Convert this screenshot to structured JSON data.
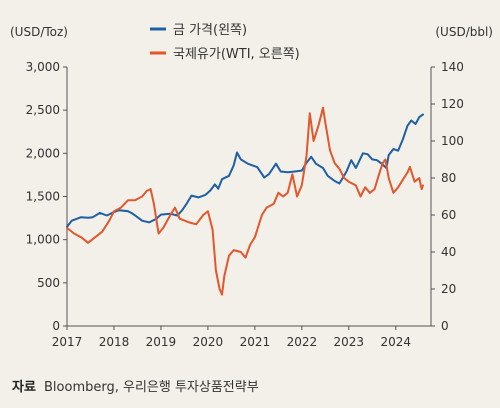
{
  "chart_data": {
    "type": "line",
    "left_axis_unit": "(USD/Toz)",
    "right_axis_unit": "(USD/bbl)",
    "left_ylim": [
      0,
      3000
    ],
    "right_ylim": [
      0,
      140
    ],
    "left_ticks": [
      "3,000",
      "2,500",
      "2,000",
      "1,500",
      "1,000",
      "500",
      "0"
    ],
    "right_ticks": [
      "140",
      "120",
      "100",
      "80",
      "60",
      "40",
      "20",
      "0"
    ],
    "x_ticks": [
      "2017",
      "2018",
      "2019",
      "2020",
      "2021",
      "2022",
      "2023",
      "2024"
    ],
    "xlim": [
      2017.0,
      2024.75
    ],
    "grid": false,
    "legend_position": "top-center",
    "series": [
      {
        "name": "금 가격(왼쪽)",
        "axis": "left",
        "color": "#1f5fa3",
        "points": [
          [
            2017.0,
            1150
          ],
          [
            2017.1,
            1220
          ],
          [
            2017.2,
            1240
          ],
          [
            2017.3,
            1260
          ],
          [
            2017.45,
            1255
          ],
          [
            2017.55,
            1260
          ],
          [
            2017.7,
            1310
          ],
          [
            2017.85,
            1280
          ],
          [
            2018.0,
            1320
          ],
          [
            2018.1,
            1340
          ],
          [
            2018.3,
            1330
          ],
          [
            2018.4,
            1300
          ],
          [
            2018.5,
            1260
          ],
          [
            2018.6,
            1220
          ],
          [
            2018.75,
            1200
          ],
          [
            2018.9,
            1240
          ],
          [
            2019.0,
            1290
          ],
          [
            2019.2,
            1300
          ],
          [
            2019.35,
            1280
          ],
          [
            2019.45,
            1340
          ],
          [
            2019.55,
            1420
          ],
          [
            2019.65,
            1510
          ],
          [
            2019.8,
            1490
          ],
          [
            2019.95,
            1520
          ],
          [
            2020.05,
            1570
          ],
          [
            2020.15,
            1640
          ],
          [
            2020.22,
            1590
          ],
          [
            2020.3,
            1700
          ],
          [
            2020.45,
            1740
          ],
          [
            2020.55,
            1860
          ],
          [
            2020.62,
            2010
          ],
          [
            2020.7,
            1930
          ],
          [
            2020.85,
            1880
          ],
          [
            2020.95,
            1860
          ],
          [
            2021.05,
            1840
          ],
          [
            2021.2,
            1720
          ],
          [
            2021.3,
            1760
          ],
          [
            2021.45,
            1880
          ],
          [
            2021.55,
            1790
          ],
          [
            2021.7,
            1780
          ],
          [
            2021.85,
            1790
          ],
          [
            2022.0,
            1800
          ],
          [
            2022.1,
            1890
          ],
          [
            2022.2,
            1960
          ],
          [
            2022.3,
            1880
          ],
          [
            2022.45,
            1830
          ],
          [
            2022.55,
            1740
          ],
          [
            2022.7,
            1680
          ],
          [
            2022.8,
            1650
          ],
          [
            2022.95,
            1790
          ],
          [
            2023.05,
            1920
          ],
          [
            2023.15,
            1830
          ],
          [
            2023.3,
            2000
          ],
          [
            2023.4,
            1990
          ],
          [
            2023.5,
            1930
          ],
          [
            2023.6,
            1920
          ],
          [
            2023.7,
            1880
          ],
          [
            2023.8,
            1830
          ],
          [
            2023.85,
            1980
          ],
          [
            2023.95,
            2050
          ],
          [
            2024.05,
            2030
          ],
          [
            2024.15,
            2160
          ],
          [
            2024.25,
            2320
          ],
          [
            2024.33,
            2380
          ],
          [
            2024.42,
            2340
          ],
          [
            2024.5,
            2420
          ],
          [
            2024.58,
            2450
          ]
        ]
      },
      {
        "name": "국제유가(WTI, 오른쪽)",
        "axis": "right",
        "color": "#e2572b",
        "points": [
          [
            2017.0,
            53
          ],
          [
            2017.15,
            50
          ],
          [
            2017.3,
            48
          ],
          [
            2017.45,
            45
          ],
          [
            2017.6,
            48
          ],
          [
            2017.75,
            51
          ],
          [
            2017.9,
            57
          ],
          [
            2018.0,
            62
          ],
          [
            2018.15,
            64
          ],
          [
            2018.3,
            68
          ],
          [
            2018.45,
            68
          ],
          [
            2018.6,
            70
          ],
          [
            2018.7,
            73
          ],
          [
            2018.78,
            74
          ],
          [
            2018.85,
            66
          ],
          [
            2018.95,
            50
          ],
          [
            2019.05,
            53
          ],
          [
            2019.2,
            60
          ],
          [
            2019.3,
            64
          ],
          [
            2019.4,
            58
          ],
          [
            2019.5,
            57
          ],
          [
            2019.6,
            56
          ],
          [
            2019.75,
            55
          ],
          [
            2019.9,
            60
          ],
          [
            2020.0,
            62
          ],
          [
            2020.1,
            52
          ],
          [
            2020.17,
            30
          ],
          [
            2020.25,
            20
          ],
          [
            2020.3,
            17
          ],
          [
            2020.35,
            27
          ],
          [
            2020.45,
            38
          ],
          [
            2020.55,
            41
          ],
          [
            2020.7,
            40
          ],
          [
            2020.8,
            37
          ],
          [
            2020.9,
            44
          ],
          [
            2021.0,
            48
          ],
          [
            2021.15,
            60
          ],
          [
            2021.25,
            64
          ],
          [
            2021.4,
            66
          ],
          [
            2021.5,
            72
          ],
          [
            2021.6,
            70
          ],
          [
            2021.7,
            72
          ],
          [
            2021.8,
            82
          ],
          [
            2021.9,
            70
          ],
          [
            2022.0,
            76
          ],
          [
            2022.1,
            92
          ],
          [
            2022.17,
            115
          ],
          [
            2022.25,
            100
          ],
          [
            2022.35,
            108
          ],
          [
            2022.45,
            118
          ],
          [
            2022.5,
            110
          ],
          [
            2022.6,
            95
          ],
          [
            2022.7,
            88
          ],
          [
            2022.8,
            85
          ],
          [
            2022.9,
            80
          ],
          [
            2023.0,
            78
          ],
          [
            2023.15,
            76
          ],
          [
            2023.25,
            70
          ],
          [
            2023.35,
            75
          ],
          [
            2023.45,
            72
          ],
          [
            2023.55,
            74
          ],
          [
            2023.62,
            80
          ],
          [
            2023.72,
            88
          ],
          [
            2023.78,
            90
          ],
          [
            2023.85,
            80
          ],
          [
            2023.95,
            72
          ],
          [
            2024.05,
            75
          ],
          [
            2024.15,
            79
          ],
          [
            2024.25,
            83
          ],
          [
            2024.3,
            86
          ],
          [
            2024.4,
            78
          ],
          [
            2024.5,
            80
          ],
          [
            2024.55,
            74
          ],
          [
            2024.58,
            76
          ]
        ]
      }
    ]
  },
  "source": {
    "label": "자료",
    "text": " Bloomberg, 우리은행 투자상품전략부"
  }
}
